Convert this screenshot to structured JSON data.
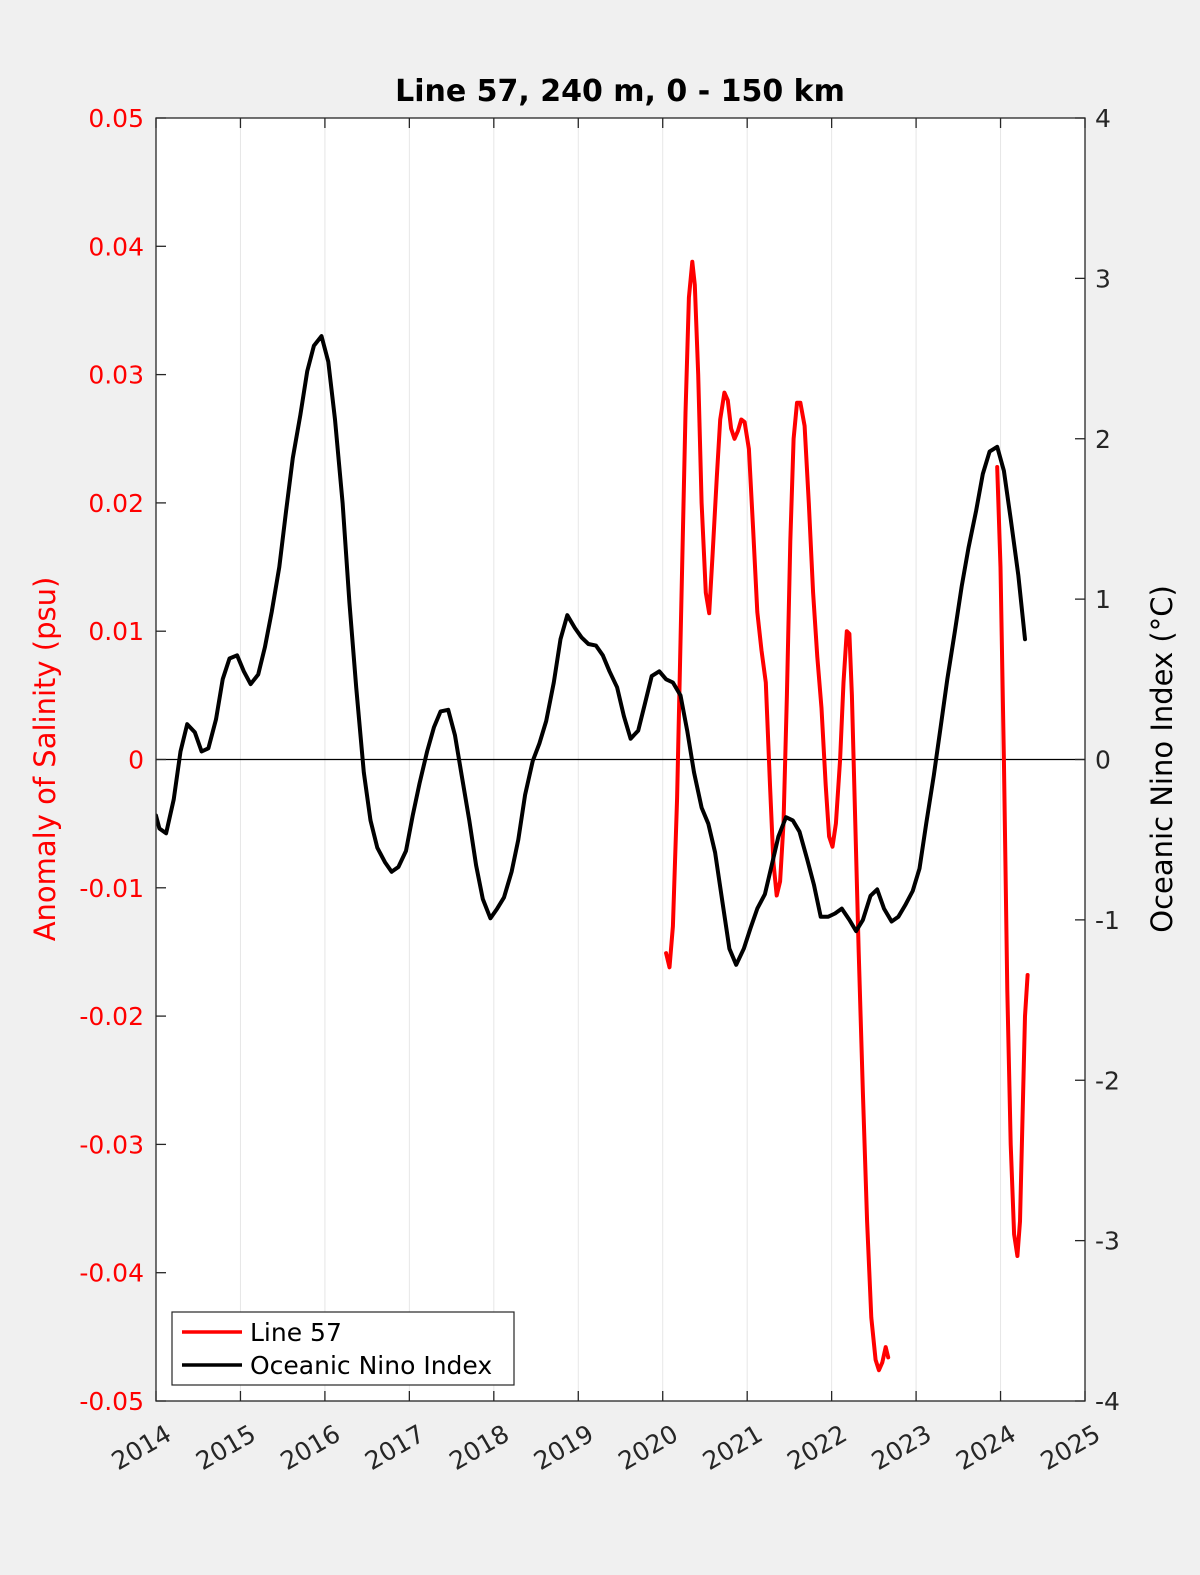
{
  "chart_data": {
    "type": "line",
    "title": "Line 57, 240 m, 0 - 150 km",
    "ylabel_left": "Anomaly of Salinity (psu)",
    "ylabel_right": "Oceanic Nino Index (°C)",
    "xlim": [
      2014,
      2025
    ],
    "ylim_left": [
      -0.05,
      0.05
    ],
    "ylim_right": [
      -4,
      4
    ],
    "x_ticks": [
      "2014",
      "2015",
      "2016",
      "2017",
      "2018",
      "2019",
      "2020",
      "2021",
      "2022",
      "2023",
      "2024",
      "2025"
    ],
    "y_left_ticks": [
      "0.05",
      "0.04",
      "0.03",
      "0.02",
      "0.01",
      "0",
      "-0.01",
      "-0.02",
      "-0.03",
      "-0.04",
      "-0.05"
    ],
    "y_right_ticks": [
      "4",
      "3",
      "2",
      "1",
      "0",
      "-1",
      "-2",
      "-3",
      "-4"
    ],
    "grid": "vertical",
    "zero_line": true,
    "legend": {
      "placement": "bottom-left",
      "entries": [
        "Line 57",
        "Oceanic Nino Index"
      ]
    },
    "series": [
      {
        "name": "Line 57",
        "axis": "left",
        "color": "#ff0000",
        "segments": [
          [
            [
              2020.04,
              -0.0151
            ],
            [
              2020.08,
              -0.0162
            ],
            [
              2020.12,
              -0.013
            ],
            [
              2020.17,
              -0.003
            ],
            [
              2020.22,
              0.012
            ],
            [
              2020.27,
              0.027
            ],
            [
              2020.31,
              0.036
            ],
            [
              2020.35,
              0.0388
            ],
            [
              2020.38,
              0.037
            ],
            [
              2020.42,
              0.03
            ],
            [
              2020.46,
              0.02
            ],
            [
              2020.51,
              0.013
            ],
            [
              2020.55,
              0.0114
            ],
            [
              2020.59,
              0.016
            ],
            [
              2020.64,
              0.022
            ],
            [
              2020.68,
              0.0265
            ],
            [
              2020.73,
              0.0286
            ],
            [
              2020.77,
              0.028
            ],
            [
              2020.81,
              0.0258
            ],
            [
              2020.85,
              0.025
            ],
            [
              2020.89,
              0.0256
            ],
            [
              2020.93,
              0.0265
            ],
            [
              2020.97,
              0.0263
            ],
            [
              2021.02,
              0.0242
            ],
            [
              2021.07,
              0.018
            ],
            [
              2021.12,
              0.0115
            ],
            [
              2021.17,
              0.0085
            ],
            [
              2021.22,
              0.006
            ],
            [
              2021.27,
              -0.002
            ],
            [
              2021.31,
              -0.008
            ],
            [
              2021.35,
              -0.0106
            ],
            [
              2021.39,
              -0.0095
            ],
            [
              2021.43,
              -0.005
            ],
            [
              2021.47,
              0.005
            ],
            [
              2021.51,
              0.017
            ],
            [
              2021.55,
              0.025
            ],
            [
              2021.59,
              0.0278
            ],
            [
              2021.63,
              0.0278
            ],
            [
              2021.68,
              0.026
            ],
            [
              2021.73,
              0.02
            ],
            [
              2021.78,
              0.013
            ],
            [
              2021.83,
              0.008
            ],
            [
              2021.88,
              0.004
            ],
            [
              2021.93,
              -0.002
            ],
            [
              2021.97,
              -0.006
            ],
            [
              2022.01,
              -0.0068
            ],
            [
              2022.05,
              -0.005
            ],
            [
              2022.1,
              0.0
            ],
            [
              2022.14,
              0.006
            ],
            [
              2022.18,
              0.01
            ],
            [
              2022.21,
              0.0098
            ],
            [
              2022.24,
              0.005
            ],
            [
              2022.28,
              -0.005
            ],
            [
              2022.32,
              -0.015
            ],
            [
              2022.37,
              -0.026
            ],
            [
              2022.42,
              -0.036
            ],
            [
              2022.47,
              -0.0435
            ],
            [
              2022.52,
              -0.0468
            ],
            [
              2022.56,
              -0.0476
            ],
            [
              2022.6,
              -0.047
            ],
            [
              2022.64,
              -0.0458
            ],
            [
              2022.67,
              -0.0466
            ]
          ],
          [
            [
              2023.96,
              0.0228
            ],
            [
              2024.0,
              0.015
            ],
            [
              2024.04,
              0.0
            ],
            [
              2024.08,
              -0.018
            ],
            [
              2024.12,
              -0.03
            ],
            [
              2024.16,
              -0.037
            ],
            [
              2024.2,
              -0.0387
            ],
            [
              2024.23,
              -0.036
            ],
            [
              2024.26,
              -0.028
            ],
            [
              2024.29,
              -0.02
            ],
            [
              2024.32,
              -0.0168
            ]
          ]
        ]
      },
      {
        "name": "Oceanic Nino Index",
        "axis": "right",
        "color": "#000000",
        "points": [
          [
            2014.0,
            -0.35
          ],
          [
            2014.04,
            -0.43
          ],
          [
            2014.12,
            -0.46
          ],
          [
            2014.21,
            -0.25
          ],
          [
            2014.29,
            0.05
          ],
          [
            2014.37,
            0.22
          ],
          [
            2014.46,
            0.17
          ],
          [
            2014.54,
            0.05
          ],
          [
            2014.62,
            0.07
          ],
          [
            2014.71,
            0.25
          ],
          [
            2014.79,
            0.5
          ],
          [
            2014.87,
            0.63
          ],
          [
            2014.96,
            0.65
          ],
          [
            2015.04,
            0.55
          ],
          [
            2015.12,
            0.47
          ],
          [
            2015.21,
            0.53
          ],
          [
            2015.29,
            0.7
          ],
          [
            2015.37,
            0.92
          ],
          [
            2015.46,
            1.2
          ],
          [
            2015.54,
            1.55
          ],
          [
            2015.62,
            1.88
          ],
          [
            2015.71,
            2.15
          ],
          [
            2015.79,
            2.42
          ],
          [
            2015.87,
            2.58
          ],
          [
            2015.96,
            2.64
          ],
          [
            2016.04,
            2.48
          ],
          [
            2016.12,
            2.12
          ],
          [
            2016.21,
            1.6
          ],
          [
            2016.29,
            0.98
          ],
          [
            2016.37,
            0.45
          ],
          [
            2016.46,
            -0.08
          ],
          [
            2016.54,
            -0.38
          ],
          [
            2016.62,
            -0.55
          ],
          [
            2016.71,
            -0.64
          ],
          [
            2016.79,
            -0.7
          ],
          [
            2016.87,
            -0.67
          ],
          [
            2016.96,
            -0.57
          ],
          [
            2017.04,
            -0.35
          ],
          [
            2017.12,
            -0.15
          ],
          [
            2017.21,
            0.05
          ],
          [
            2017.29,
            0.2
          ],
          [
            2017.37,
            0.3
          ],
          [
            2017.46,
            0.31
          ],
          [
            2017.54,
            0.15
          ],
          [
            2017.62,
            -0.1
          ],
          [
            2017.71,
            -0.38
          ],
          [
            2017.79,
            -0.66
          ],
          [
            2017.87,
            -0.87
          ],
          [
            2017.96,
            -0.99
          ],
          [
            2018.04,
            -0.93
          ],
          [
            2018.12,
            -0.86
          ],
          [
            2018.21,
            -0.7
          ],
          [
            2018.29,
            -0.5
          ],
          [
            2018.37,
            -0.22
          ],
          [
            2018.46,
            -0.01
          ],
          [
            2018.54,
            0.1
          ],
          [
            2018.62,
            0.24
          ],
          [
            2018.71,
            0.48
          ],
          [
            2018.79,
            0.75
          ],
          [
            2018.87,
            0.9
          ],
          [
            2018.96,
            0.82
          ],
          [
            2019.04,
            0.76
          ],
          [
            2019.12,
            0.72
          ],
          [
            2019.21,
            0.71
          ],
          [
            2019.29,
            0.65
          ],
          [
            2019.37,
            0.55
          ],
          [
            2019.46,
            0.45
          ],
          [
            2019.54,
            0.27
          ],
          [
            2019.62,
            0.13
          ],
          [
            2019.71,
            0.18
          ],
          [
            2019.79,
            0.35
          ],
          [
            2019.87,
            0.52
          ],
          [
            2019.96,
            0.55
          ],
          [
            2020.04,
            0.5
          ],
          [
            2020.12,
            0.48
          ],
          [
            2020.21,
            0.4
          ],
          [
            2020.29,
            0.18
          ],
          [
            2020.37,
            -0.08
          ],
          [
            2020.46,
            -0.3
          ],
          [
            2020.54,
            -0.4
          ],
          [
            2020.62,
            -0.58
          ],
          [
            2020.71,
            -0.9
          ],
          [
            2020.79,
            -1.18
          ],
          [
            2020.87,
            -1.28
          ],
          [
            2020.96,
            -1.18
          ],
          [
            2021.04,
            -1.05
          ],
          [
            2021.12,
            -0.93
          ],
          [
            2021.21,
            -0.84
          ],
          [
            2021.29,
            -0.66
          ],
          [
            2021.37,
            -0.48
          ],
          [
            2021.46,
            -0.36
          ],
          [
            2021.54,
            -0.38
          ],
          [
            2021.62,
            -0.45
          ],
          [
            2021.71,
            -0.62
          ],
          [
            2021.79,
            -0.78
          ],
          [
            2021.87,
            -0.98
          ],
          [
            2021.96,
            -0.98
          ],
          [
            2022.04,
            -0.96
          ],
          [
            2022.12,
            -0.93
          ],
          [
            2022.21,
            -1.0
          ],
          [
            2022.29,
            -1.07
          ],
          [
            2022.37,
            -1.0
          ],
          [
            2022.46,
            -0.85
          ],
          [
            2022.54,
            -0.81
          ],
          [
            2022.62,
            -0.93
          ],
          [
            2022.71,
            -1.01
          ],
          [
            2022.79,
            -0.98
          ],
          [
            2022.87,
            -0.91
          ],
          [
            2022.96,
            -0.82
          ],
          [
            2023.04,
            -0.68
          ],
          [
            2023.12,
            -0.4
          ],
          [
            2023.21,
            -0.1
          ],
          [
            2023.29,
            0.2
          ],
          [
            2023.37,
            0.5
          ],
          [
            2023.46,
            0.8
          ],
          [
            2023.54,
            1.08
          ],
          [
            2023.62,
            1.32
          ],
          [
            2023.71,
            1.55
          ],
          [
            2023.79,
            1.78
          ],
          [
            2023.87,
            1.92
          ],
          [
            2023.96,
            1.95
          ],
          [
            2024.04,
            1.8
          ],
          [
            2024.12,
            1.5
          ],
          [
            2024.21,
            1.15
          ],
          [
            2024.29,
            0.75
          ]
        ]
      }
    ]
  }
}
